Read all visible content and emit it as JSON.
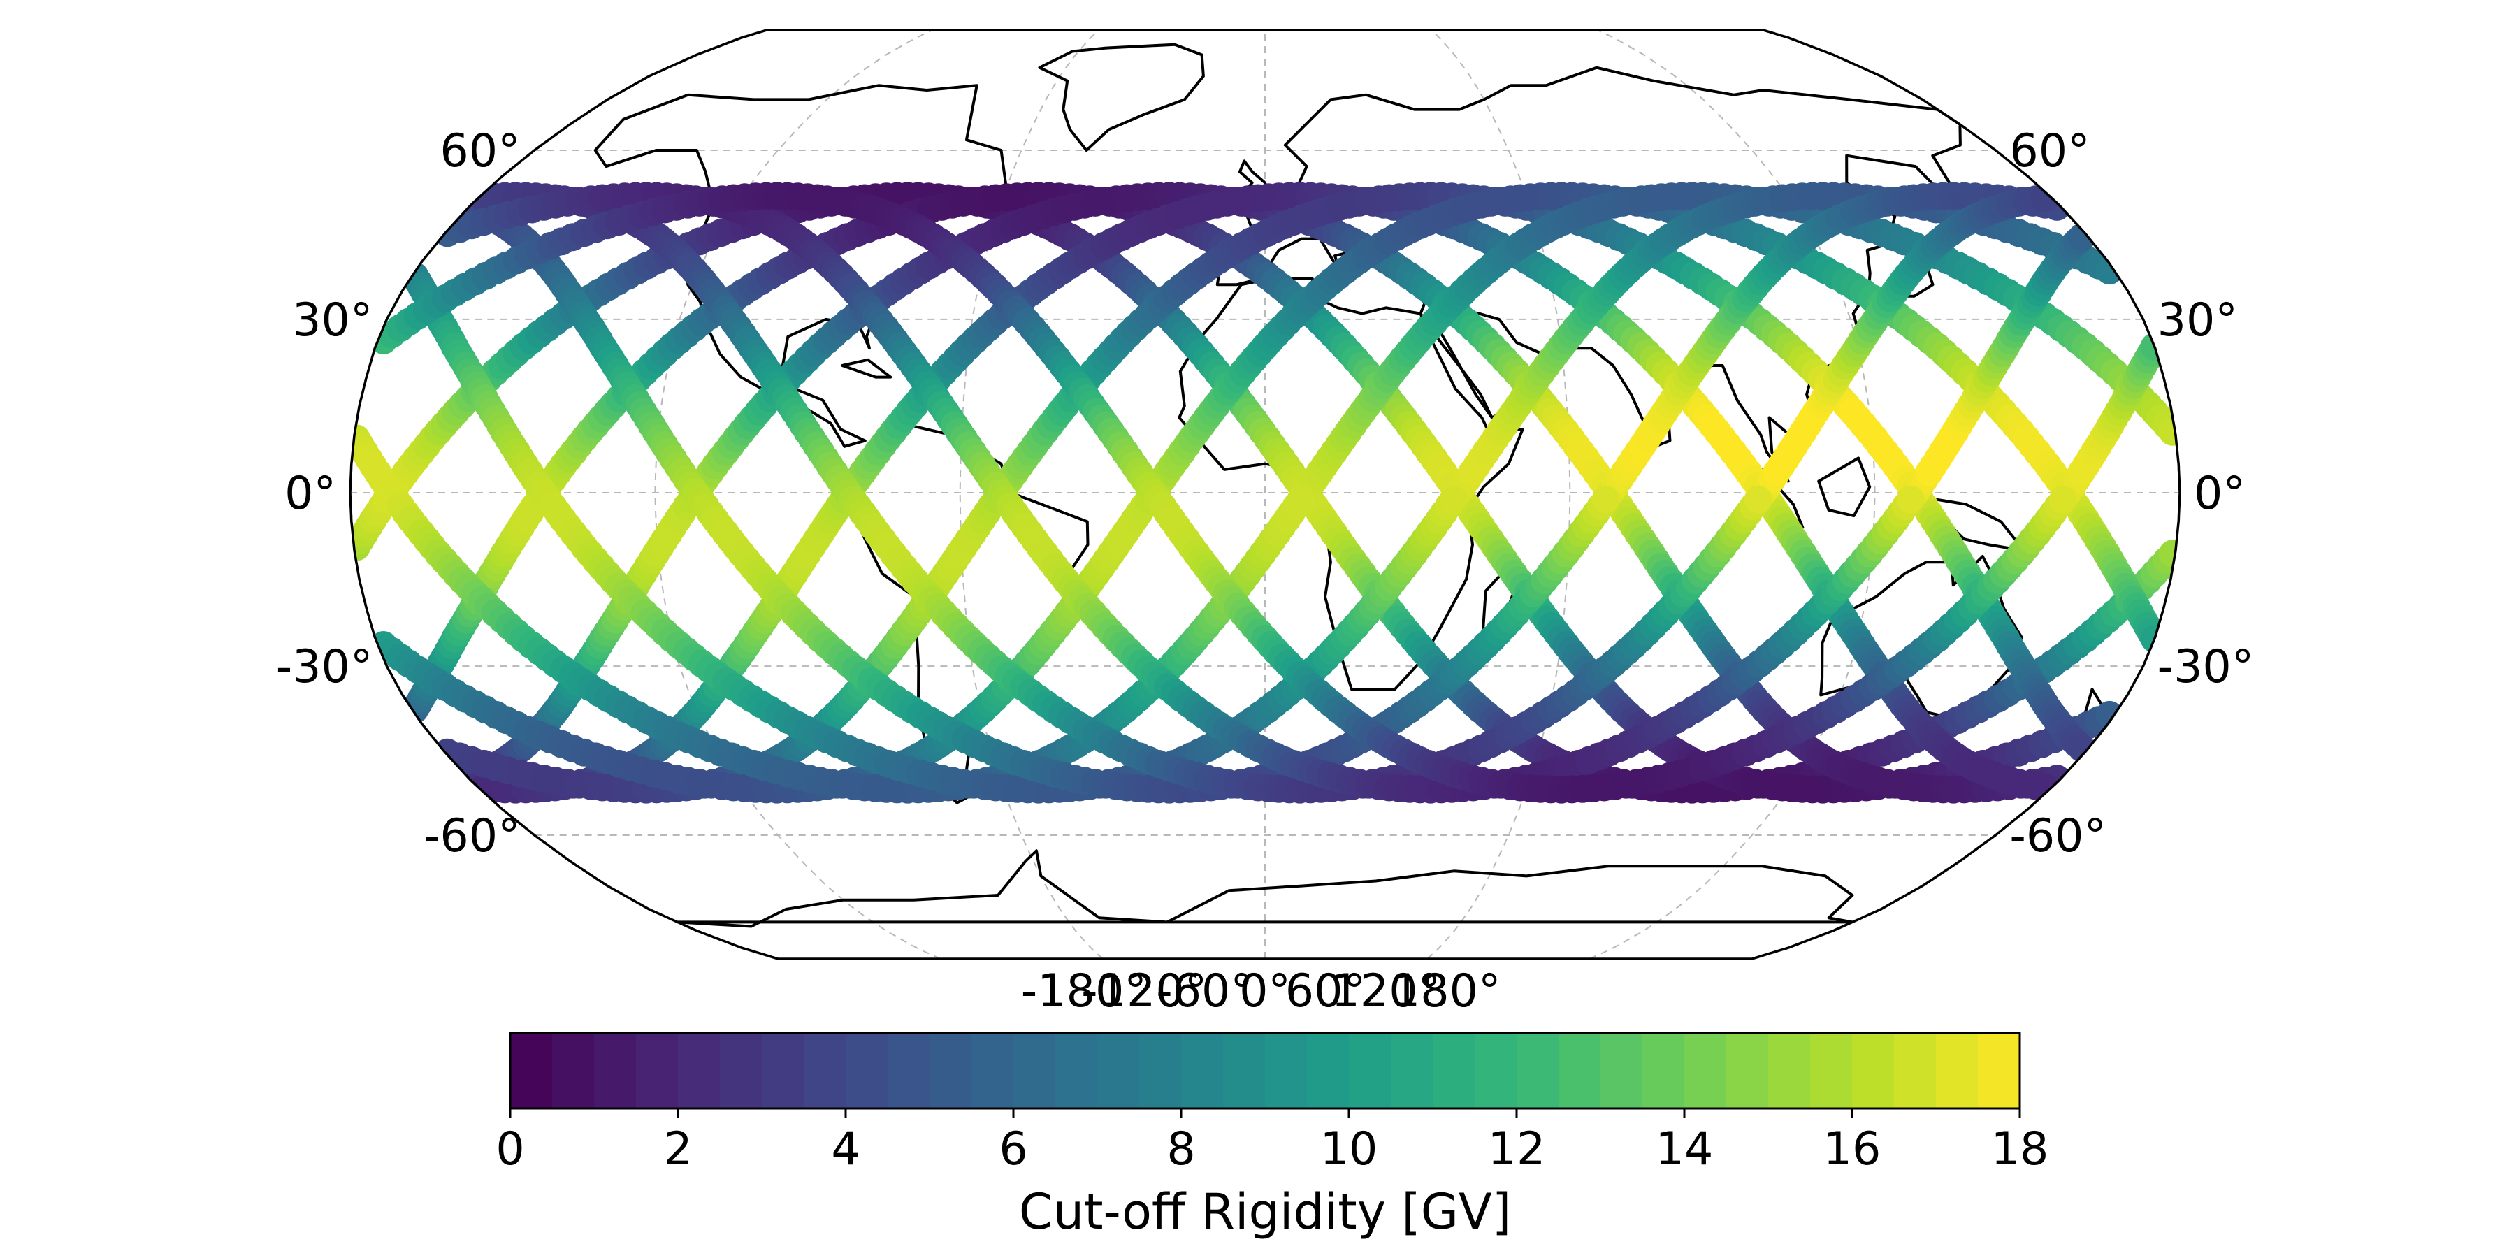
{
  "chart_data": {
    "type": "scatter",
    "title": "",
    "projection": "Robinson",
    "xlabel": "",
    "ylabel": "",
    "grid": true,
    "latitude_ticks": [
      "60°",
      "30°",
      "0°",
      "-30°",
      "-60°"
    ],
    "latitude_tick_values": [
      60,
      30,
      0,
      -30,
      -60
    ],
    "longitude_ticks": [
      "-180°",
      "-120°",
      "-60°",
      "0°",
      "60°",
      "120°",
      "180°"
    ],
    "longitude_tick_values": [
      -180,
      -120,
      -60,
      0,
      60,
      120,
      180
    ],
    "points_description": "Satellite ground-track sample points between about -52° and 52° latitude, colored by cut-off rigidity",
    "orbit_inclination_deg": 51.6,
    "track_count": 12,
    "samples_per_orbit": 240,
    "colorbar": {
      "label": "Cut-off Rigidity [GV]",
      "min": 0,
      "max": 18,
      "ticks": [
        "0",
        "2",
        "4",
        "6",
        "8",
        "10",
        "12",
        "14",
        "16",
        "18"
      ],
      "tick_values": [
        0,
        2,
        4,
        6,
        8,
        10,
        12,
        14,
        16,
        18
      ],
      "steps": 36,
      "colormap": [
        "#440154",
        "#482878",
        "#3e4989",
        "#31688e",
        "#26828e",
        "#1f9e89",
        "#35b779",
        "#6ece58",
        "#b5de2b",
        "#fde725"
      ]
    }
  },
  "colors": {
    "coastline": "#000000",
    "grid": "#b8b8b8",
    "frame": "#000000"
  }
}
